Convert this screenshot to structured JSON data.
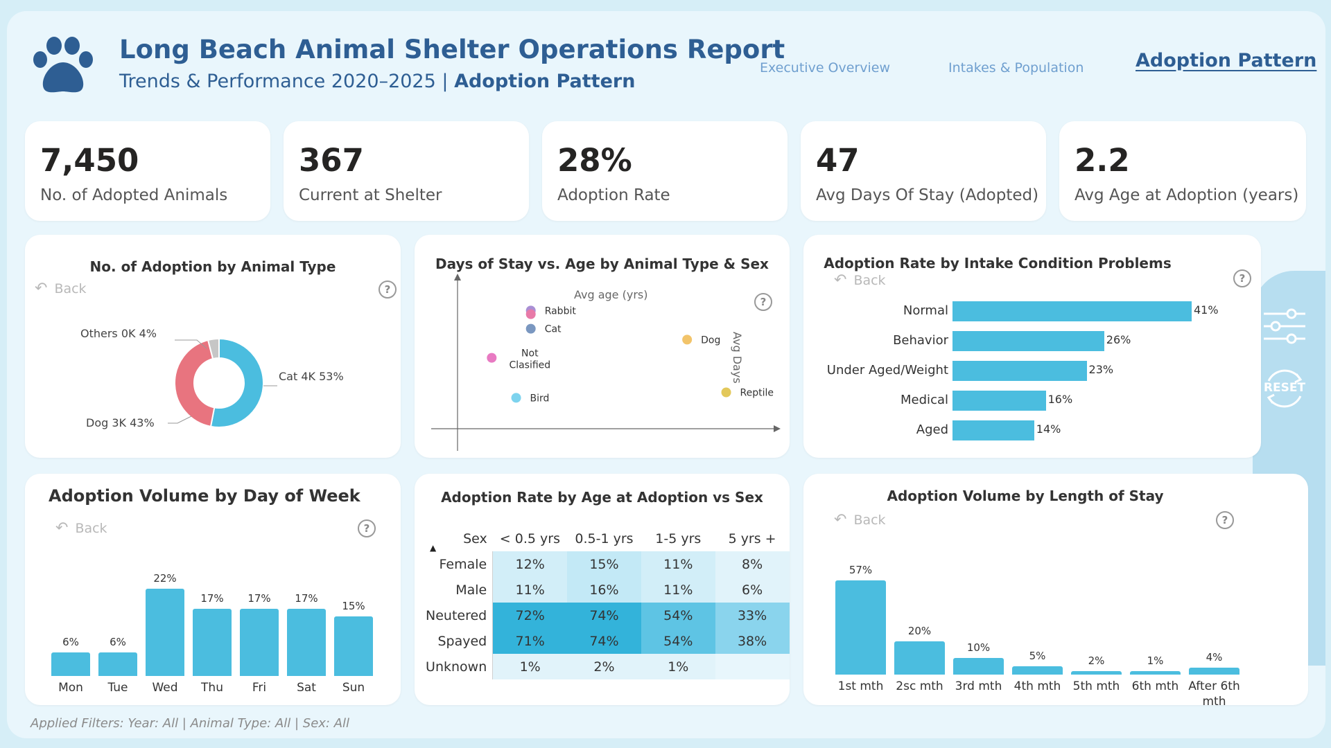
{
  "header": {
    "title": "Long Beach Animal Shelter Operations Report",
    "subtitle_prefix": "Trends & Performance 2020–2025 |",
    "subtitle_page": "Adoption Pattern",
    "logo_icon": "paw-icon"
  },
  "nav": [
    {
      "label": "Executive Overview",
      "active": false
    },
    {
      "label": "Intakes & Population",
      "active": false
    },
    {
      "label": "Adoption Pattern",
      "active": true
    }
  ],
  "kpis": [
    {
      "value": "7,450",
      "label": "No. of Adopted Animals"
    },
    {
      "value": "367",
      "label": "Current at Shelter"
    },
    {
      "value": "28%",
      "label": "Adoption Rate"
    },
    {
      "value": "47",
      "label": "Avg Days Of Stay (Adopted)"
    },
    {
      "value": "2.2",
      "label": "Avg Age at Adoption (years)"
    }
  ],
  "back_label": "Back",
  "help_glyph": "?",
  "side_controls": {
    "reset_label": "RESET",
    "filter_icon": "sliders-icon",
    "idea_icon": "lightbulb-icon"
  },
  "filters_text": "Applied Filters: Year: All | Animal Type: All | Sex: All",
  "colors": {
    "accent": "#4bbddf",
    "dog": "#e8747f",
    "others": "#c6c6c6",
    "title": "#2e5e93"
  },
  "chart_data": [
    {
      "type": "pie",
      "title": "No. of Adoption by Animal Type",
      "variant": "donut",
      "slices": [
        {
          "name": "Cat",
          "display_value": "4K",
          "percent": 53,
          "label": "Cat 4K 53%",
          "color": "#4bbddf"
        },
        {
          "name": "Dog",
          "display_value": "3K",
          "percent": 43,
          "label": "Dog 3K 43%",
          "color": "#e8747f"
        },
        {
          "name": "Others",
          "display_value": "0K",
          "percent": 4,
          "label": "Others 0K 4%",
          "color": "#c6c6c6"
        }
      ]
    },
    {
      "type": "scatter",
      "title": "Days of Stay vs. Age by Animal Type & Sex",
      "xlabel": "Avg age (yrs)",
      "ylabel": "Avg Days",
      "points": [
        {
          "label": "Rabbit",
          "x": 1.5,
          "y": 85,
          "color": "#a98fd4"
        },
        {
          "label": "",
          "x": 1.5,
          "y": 83,
          "color": "#e87aa8"
        },
        {
          "label": "Cat",
          "x": 1.5,
          "y": 75,
          "color": "#7a97c0"
        },
        {
          "label": "Dog",
          "x": 4.7,
          "y": 69,
          "color": "#f2c46a"
        },
        {
          "label": "Not Clasified",
          "x": 0.7,
          "y": 59,
          "color": "#e87ac2"
        },
        {
          "label": "Reptile",
          "x": 5.5,
          "y": 40,
          "color": "#e3c85a"
        },
        {
          "label": "Bird",
          "x": 1.2,
          "y": 37,
          "color": "#7dd3ee"
        }
      ],
      "xlim": [
        0,
        6.5
      ],
      "ylim": [
        20,
        100
      ],
      "grid": false
    },
    {
      "type": "bar",
      "orientation": "horizontal",
      "title": "Adoption Rate by Intake Condition Problems",
      "categories": [
        "Normal",
        "Behavior",
        "Under Aged/Weight",
        "Medical",
        "Aged"
      ],
      "values": [
        41,
        26,
        23,
        16,
        14
      ],
      "value_suffix": "%",
      "xlim": [
        0,
        41
      ]
    },
    {
      "type": "bar",
      "title": "Adoption Volume by Day of Week",
      "categories": [
        "Mon",
        "Tue",
        "Wed",
        "Thu",
        "Fri",
        "Sat",
        "Sun"
      ],
      "values": [
        6,
        6,
        22,
        17,
        17,
        17,
        15
      ],
      "value_suffix": "%",
      "ylim": [
        0,
        22
      ]
    },
    {
      "type": "heatmap",
      "title": "Adoption Rate by Age at Adoption vs Sex",
      "corner_label": "Sex",
      "sort_glyph": "▲",
      "columns": [
        "< 0.5 yrs",
        "0.5-1 yrs",
        "1-5 yrs",
        "5 yrs +"
      ],
      "rows": [
        {
          "label": "Female",
          "values": [
            "12%",
            "15%",
            "11%",
            "8%"
          ],
          "levels": [
            12,
            15,
            11,
            8
          ]
        },
        {
          "label": "Male",
          "values": [
            "11%",
            "16%",
            "11%",
            "6%"
          ],
          "levels": [
            11,
            16,
            11,
            6
          ]
        },
        {
          "label": "Neutered",
          "values": [
            "72%",
            "74%",
            "54%",
            "33%"
          ],
          "levels": [
            72,
            74,
            54,
            33
          ]
        },
        {
          "label": "Spayed",
          "values": [
            "71%",
            "74%",
            "54%",
            "38%"
          ],
          "levels": [
            71,
            74,
            54,
            38
          ]
        },
        {
          "label": "Unknown",
          "values": [
            "1%",
            "2%",
            "1%",
            ""
          ],
          "levels": [
            1,
            2,
            1,
            0
          ]
        }
      ]
    },
    {
      "type": "bar",
      "title": "Adoption Volume by Length of Stay",
      "categories": [
        "1st mth",
        "2sc mth",
        "3rd mth",
        "4th mth",
        "5th mth",
        "6th mth",
        "After 6th mth"
      ],
      "values": [
        57,
        20,
        10,
        5,
        2,
        1,
        4
      ],
      "value_suffix": "%",
      "ylim": [
        0,
        57
      ]
    }
  ]
}
